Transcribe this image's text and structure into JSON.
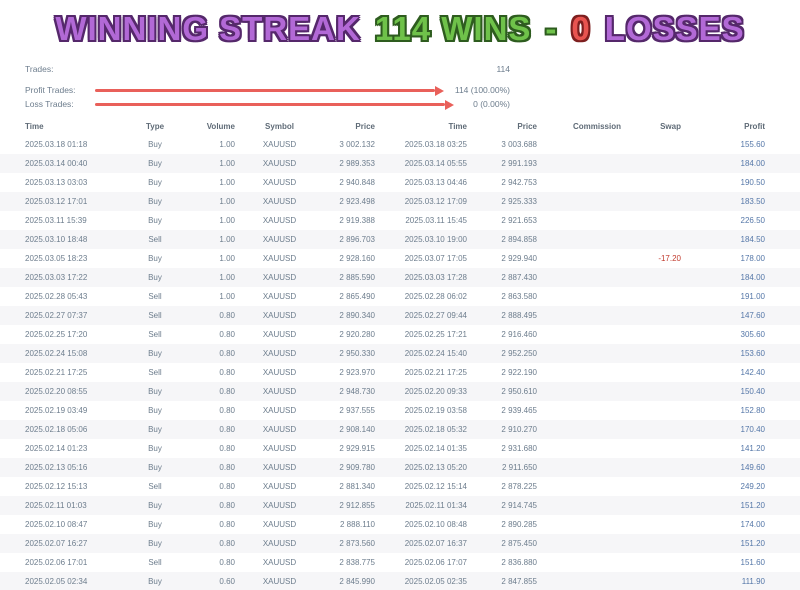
{
  "title": {
    "segments": [
      {
        "text": "WINNING STREAK",
        "color": "#b269d6",
        "outline": "#55286b"
      },
      {
        "text": "114 WINS",
        "color": "#6fc24a",
        "outline": "#2e5c1f"
      },
      {
        "text": "-",
        "color": "#6fc24a",
        "outline": "#2e5c1f"
      },
      {
        "text": "0",
        "color": "#e85450",
        "outline": "#7d1f1f"
      },
      {
        "text": "LOSSES",
        "color": "#b269d6",
        "outline": "#55286b"
      }
    ]
  },
  "stats": {
    "arrow_color": "#e9605a",
    "rows": [
      {
        "label": "Trades:",
        "value": "114",
        "arrow": false
      },
      {
        "label": "Profit Trades:",
        "value": "114 (100.00%)",
        "arrow": true
      },
      {
        "label": "Loss Trades:",
        "value": "0 (0.00%)",
        "arrow": true
      }
    ]
  },
  "table": {
    "headers": [
      "Time",
      "Type",
      "Volume",
      "Symbol",
      "Price",
      "Time",
      "Price",
      "Commission",
      "Swap",
      "Profit"
    ],
    "fields": [
      "open_time",
      "type",
      "volume",
      "symbol",
      "open_price",
      "close_time",
      "close_price",
      "commission",
      "swap",
      "profit"
    ],
    "profit_color": "#5577a8",
    "negative_color": "#c23b2e",
    "rows": [
      {
        "open_time": "2025.03.18 01:18",
        "type": "Buy",
        "volume": "1.00",
        "symbol": "XAUUSD",
        "open_price": "3 002.132",
        "close_time": "2025.03.18 03:25",
        "close_price": "3 003.688",
        "commission": "",
        "swap": "",
        "profit": "155.60"
      },
      {
        "open_time": "2025.03.14 00:40",
        "type": "Buy",
        "volume": "1.00",
        "symbol": "XAUUSD",
        "open_price": "2 989.353",
        "close_time": "2025.03.14 05:55",
        "close_price": "2 991.193",
        "commission": "",
        "swap": "",
        "profit": "184.00"
      },
      {
        "open_time": "2025.03.13 03:03",
        "type": "Buy",
        "volume": "1.00",
        "symbol": "XAUUSD",
        "open_price": "2 940.848",
        "close_time": "2025.03.13 04:46",
        "close_price": "2 942.753",
        "commission": "",
        "swap": "",
        "profit": "190.50"
      },
      {
        "open_time": "2025.03.12 17:01",
        "type": "Buy",
        "volume": "1.00",
        "symbol": "XAUUSD",
        "open_price": "2 923.498",
        "close_time": "2025.03.12 17:09",
        "close_price": "2 925.333",
        "commission": "",
        "swap": "",
        "profit": "183.50"
      },
      {
        "open_time": "2025.03.11 15:39",
        "type": "Buy",
        "volume": "1.00",
        "symbol": "XAUUSD",
        "open_price": "2 919.388",
        "close_time": "2025.03.11 15:45",
        "close_price": "2 921.653",
        "commission": "",
        "swap": "",
        "profit": "226.50"
      },
      {
        "open_time": "2025.03.10 18:48",
        "type": "Sell",
        "volume": "1.00",
        "symbol": "XAUUSD",
        "open_price": "2 896.703",
        "close_time": "2025.03.10 19:00",
        "close_price": "2 894.858",
        "commission": "",
        "swap": "",
        "profit": "184.50"
      },
      {
        "open_time": "2025.03.05 18:23",
        "type": "Buy",
        "volume": "1.00",
        "symbol": "XAUUSD",
        "open_price": "2 928.160",
        "close_time": "2025.03.07 17:05",
        "close_price": "2 929.940",
        "commission": "",
        "swap": "-17.20",
        "profit": "178.00"
      },
      {
        "open_time": "2025.03.03 17:22",
        "type": "Buy",
        "volume": "1.00",
        "symbol": "XAUUSD",
        "open_price": "2 885.590",
        "close_time": "2025.03.03 17:28",
        "close_price": "2 887.430",
        "commission": "",
        "swap": "",
        "profit": "184.00"
      },
      {
        "open_time": "2025.02.28 05:43",
        "type": "Sell",
        "volume": "1.00",
        "symbol": "XAUUSD",
        "open_price": "2 865.490",
        "close_time": "2025.02.28 06:02",
        "close_price": "2 863.580",
        "commission": "",
        "swap": "",
        "profit": "191.00"
      },
      {
        "open_time": "2025.02.27 07:37",
        "type": "Sell",
        "volume": "0.80",
        "symbol": "XAUUSD",
        "open_price": "2 890.340",
        "close_time": "2025.02.27 09:44",
        "close_price": "2 888.495",
        "commission": "",
        "swap": "",
        "profit": "147.60"
      },
      {
        "open_time": "2025.02.25 17:20",
        "type": "Sell",
        "volume": "0.80",
        "symbol": "XAUUSD",
        "open_price": "2 920.280",
        "close_time": "2025.02.25 17:21",
        "close_price": "2 916.460",
        "commission": "",
        "swap": "",
        "profit": "305.60"
      },
      {
        "open_time": "2025.02.24 15:08",
        "type": "Buy",
        "volume": "0.80",
        "symbol": "XAUUSD",
        "open_price": "2 950.330",
        "close_time": "2025.02.24 15:40",
        "close_price": "2 952.250",
        "commission": "",
        "swap": "",
        "profit": "153.60"
      },
      {
        "open_time": "2025.02.21 17:25",
        "type": "Sell",
        "volume": "0.80",
        "symbol": "XAUUSD",
        "open_price": "2 923.970",
        "close_time": "2025.02.21 17:25",
        "close_price": "2 922.190",
        "commission": "",
        "swap": "",
        "profit": "142.40"
      },
      {
        "open_time": "2025.02.20 08:55",
        "type": "Buy",
        "volume": "0.80",
        "symbol": "XAUUSD",
        "open_price": "2 948.730",
        "close_time": "2025.02.20 09:33",
        "close_price": "2 950.610",
        "commission": "",
        "swap": "",
        "profit": "150.40"
      },
      {
        "open_time": "2025.02.19 03:49",
        "type": "Buy",
        "volume": "0.80",
        "symbol": "XAUUSD",
        "open_price": "2 937.555",
        "close_time": "2025.02.19 03:58",
        "close_price": "2 939.465",
        "commission": "",
        "swap": "",
        "profit": "152.80"
      },
      {
        "open_time": "2025.02.18 05:06",
        "type": "Buy",
        "volume": "0.80",
        "symbol": "XAUUSD",
        "open_price": "2 908.140",
        "close_time": "2025.02.18 05:32",
        "close_price": "2 910.270",
        "commission": "",
        "swap": "",
        "profit": "170.40"
      },
      {
        "open_time": "2025.02.14 01:23",
        "type": "Buy",
        "volume": "0.80",
        "symbol": "XAUUSD",
        "open_price": "2 929.915",
        "close_time": "2025.02.14 01:35",
        "close_price": "2 931.680",
        "commission": "",
        "swap": "",
        "profit": "141.20"
      },
      {
        "open_time": "2025.02.13 05:16",
        "type": "Buy",
        "volume": "0.80",
        "symbol": "XAUUSD",
        "open_price": "2 909.780",
        "close_time": "2025.02.13 05:20",
        "close_price": "2 911.650",
        "commission": "",
        "swap": "",
        "profit": "149.60"
      },
      {
        "open_time": "2025.02.12 15:13",
        "type": "Sell",
        "volume": "0.80",
        "symbol": "XAUUSD",
        "open_price": "2 881.340",
        "close_time": "2025.02.12 15:14",
        "close_price": "2 878.225",
        "commission": "",
        "swap": "",
        "profit": "249.20"
      },
      {
        "open_time": "2025.02.11 01:03",
        "type": "Buy",
        "volume": "0.80",
        "symbol": "XAUUSD",
        "open_price": "2 912.855",
        "close_time": "2025.02.11 01:34",
        "close_price": "2 914.745",
        "commission": "",
        "swap": "",
        "profit": "151.20"
      },
      {
        "open_time": "2025.02.10 08:47",
        "type": "Buy",
        "volume": "0.80",
        "symbol": "XAUUSD",
        "open_price": "2 888.110",
        "close_time": "2025.02.10 08:48",
        "close_price": "2 890.285",
        "commission": "",
        "swap": "",
        "profit": "174.00"
      },
      {
        "open_time": "2025.02.07 16:27",
        "type": "Buy",
        "volume": "0.80",
        "symbol": "XAUUSD",
        "open_price": "2 873.560",
        "close_time": "2025.02.07 16:37",
        "close_price": "2 875.450",
        "commission": "",
        "swap": "",
        "profit": "151.20"
      },
      {
        "open_time": "2025.02.06 17:01",
        "type": "Sell",
        "volume": "0.80",
        "symbol": "XAUUSD",
        "open_price": "2 838.775",
        "close_time": "2025.02.06 17:07",
        "close_price": "2 836.880",
        "commission": "",
        "swap": "",
        "profit": "151.60"
      },
      {
        "open_time": "2025.02.05 02:34",
        "type": "Buy",
        "volume": "0.60",
        "symbol": "XAUUSD",
        "open_price": "2 845.990",
        "close_time": "2025.02.05 02:35",
        "close_price": "2 847.855",
        "commission": "",
        "swap": "",
        "profit": "111.90"
      }
    ]
  }
}
